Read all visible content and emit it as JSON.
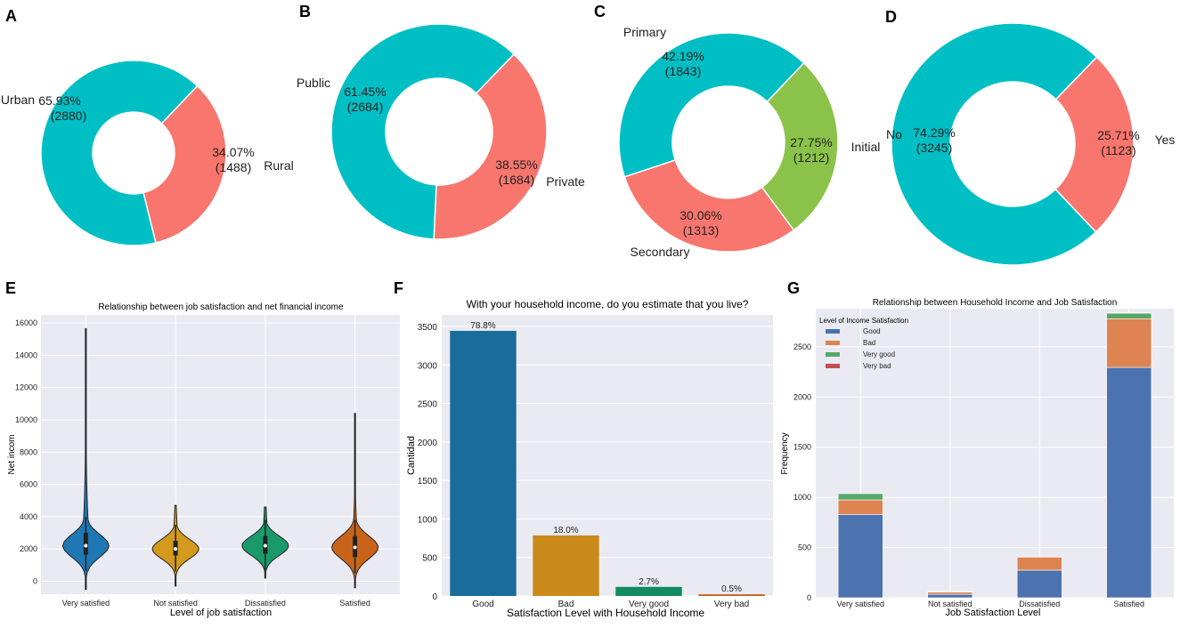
{
  "colors": {
    "teal": "#00BFC4",
    "salmon": "#F8766D",
    "green": "#8BC34A",
    "plotbg": "#EAEAF2",
    "grid": "#ffffff"
  },
  "chart_data": [
    {
      "panel": "A",
      "type": "pie",
      "donut": true,
      "slices": [
        {
          "name": "Urban",
          "percent": "65.93%",
          "count": "(2880)",
          "value": 2880,
          "color": "#00BFC4"
        },
        {
          "name": "Rural",
          "percent": "34.07%",
          "count": "(1488)",
          "value": 1488,
          "color": "#F8766D"
        }
      ]
    },
    {
      "panel": "B",
      "type": "pie",
      "donut": true,
      "slices": [
        {
          "name": "Public",
          "percent": "61.45%",
          "count": "(2684)",
          "value": 2684,
          "color": "#00BFC4"
        },
        {
          "name": "Private",
          "percent": "38.55%",
          "count": "(1684)",
          "value": 1684,
          "color": "#F8766D"
        }
      ]
    },
    {
      "panel": "C",
      "type": "pie",
      "donut": true,
      "slices": [
        {
          "name": "Primary",
          "percent": "42.19%",
          "count": "(1843)",
          "value": 1843,
          "color": "#00BFC4"
        },
        {
          "name": "Initial",
          "percent": "27.75%",
          "count": "(1212)",
          "value": 1212,
          "color": "#8BC34A"
        },
        {
          "name": "Secondary",
          "percent": "30.06%",
          "count": "(1313)",
          "value": 1313,
          "color": "#F8766D"
        }
      ]
    },
    {
      "panel": "D",
      "type": "pie",
      "donut": true,
      "slices": [
        {
          "name": "No",
          "percent": "74.29%",
          "count": "(3245)",
          "value": 3245,
          "color": "#00BFC4"
        },
        {
          "name": "Yes",
          "percent": "25.71%",
          "count": "(1123)",
          "value": 1123,
          "color": "#F8766D"
        }
      ]
    },
    {
      "panel": "E",
      "type": "violin",
      "title": "Relationship between job satisfaction and net financial income",
      "xlabel": "Level of job satisfaction",
      "ylabel": "Net incom",
      "categories": [
        "Very satisfied",
        "Not satisfied",
        "Dissatisfied",
        "Satisfied"
      ],
      "colors": [
        "#1F77B4",
        "#D49A1E",
        "#1A9A6B",
        "#C8641A"
      ],
      "ylim": [
        -800,
        16500
      ],
      "yticks": [
        0,
        2000,
        4000,
        6000,
        8000,
        10000,
        12000,
        14000,
        16000
      ],
      "ranges": [
        [
          -500,
          15650
        ],
        [
          -300,
          4700
        ],
        [
          200,
          4600
        ],
        [
          -400,
          10400
        ]
      ],
      "medians": [
        2200,
        2000,
        2200,
        2100
      ],
      "q1": [
        1650,
        1600,
        1700,
        1500
      ],
      "q3": [
        3000,
        2500,
        2800,
        2800
      ]
    },
    {
      "panel": "F",
      "type": "bar",
      "title": "With your household income, do you estimate that you live?",
      "xlabel": "Satisfaction Level with Household Income",
      "ylabel": "Cantidad",
      "categories": [
        "Good",
        "Bad",
        "Very good",
        "Very bad"
      ],
      "values": [
        3443,
        786,
        118,
        22
      ],
      "labels": [
        "78.8%",
        "18.0%",
        "2.7%",
        "0.5%"
      ],
      "colors": [
        "#196C9C",
        "#C98A1B",
        "#128A62",
        "#C4671E"
      ],
      "ylim": [
        0,
        3650
      ],
      "yticks": [
        0,
        500,
        1000,
        1500,
        2000,
        2500,
        3000,
        3500
      ]
    },
    {
      "panel": "G",
      "type": "bar",
      "stacked": true,
      "title": "Relationship between Household Income and Job Satisfaction",
      "xlabel": "Job Satisfaction Level",
      "ylabel": "Frequency",
      "legend_title": "Level of Income Satisfaction",
      "categories": [
        "Very satisfied",
        "Not satisfied",
        "Dissatisfied",
        "Satisfied"
      ],
      "series": [
        {
          "name": "Good",
          "color": "#4C72B0",
          "values": [
            830,
            35,
            275,
            2295
          ]
        },
        {
          "name": "Bad",
          "color": "#DD8452",
          "values": [
            145,
            22,
            130,
            485
          ]
        },
        {
          "name": "Very good",
          "color": "#55A868",
          "values": [
            62,
            4,
            2,
            55
          ]
        },
        {
          "name": "Very bad",
          "color": "#C44E52",
          "values": [
            0,
            1,
            1,
            5
          ]
        }
      ],
      "ylim": [
        0,
        2880
      ],
      "yticks": [
        0,
        500,
        1000,
        1500,
        2000,
        2500
      ]
    }
  ]
}
